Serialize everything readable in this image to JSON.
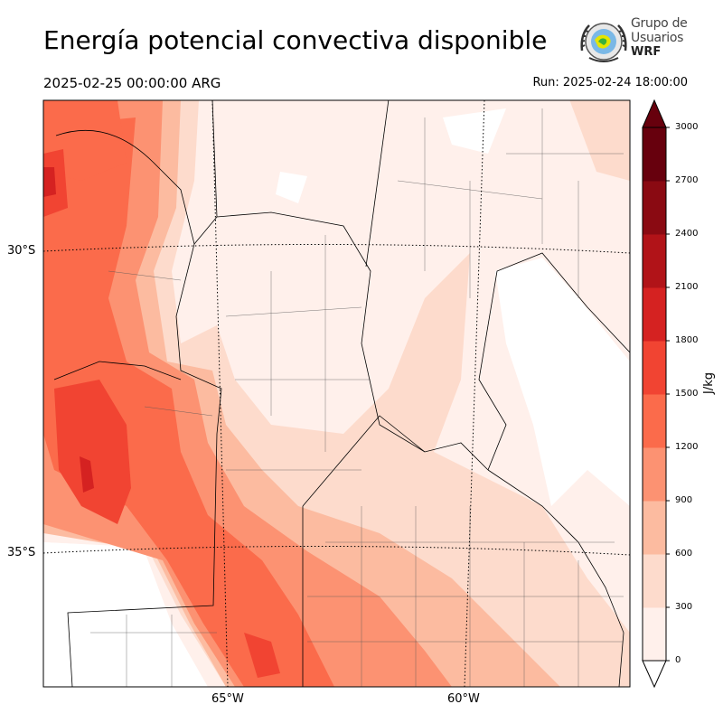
{
  "title": "Energía potencial convectiva disponible",
  "valid_time": "2025-02-25 00:00:00 ARG",
  "run_time": "Run: 2025-02-24 18:00:00",
  "logo": {
    "line1": "Grupo de",
    "line2": "Usuarios",
    "line3": "WRF"
  },
  "latitude_labels": [
    "30°S",
    "35°S"
  ],
  "longitude_labels": [
    "65°W",
    "60°W"
  ],
  "colorbar": {
    "unit": "J/kg",
    "ticks": [
      "0",
      "300",
      "600",
      "900",
      "1200",
      "1500",
      "1800",
      "2100",
      "2400",
      "2700",
      "3000"
    ],
    "colors": [
      "#fff0eb",
      "#fddbcc",
      "#fcbba0",
      "#fc9272",
      "#fb6b4b",
      "#f14432",
      "#d52221",
      "#b11318",
      "#8a0a12",
      "#67000d"
    ],
    "extend": "max"
  }
}
